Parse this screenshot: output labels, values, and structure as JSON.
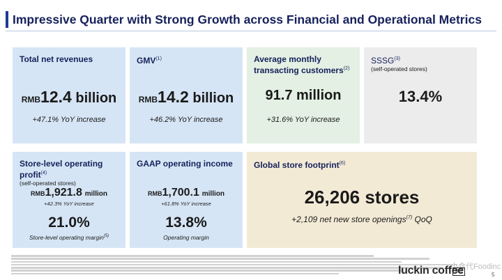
{
  "title": "Impressive Quarter with Strong Growth across Financial and Operational Metrics",
  "colors": {
    "navy": "#16215b",
    "blue_card": "#d6e5f5",
    "green_card": "#e3f0e3",
    "gray_card": "#ececec",
    "beige_card": "#f3ead6"
  },
  "cards": {
    "revenue": {
      "title": "Total net revenues",
      "prefix": "RMB",
      "value": "12.4",
      "unit": "billion",
      "note": "+47.1% YoY increase"
    },
    "gmv": {
      "title": "GMV",
      "sup": "(1)",
      "prefix": "RMB",
      "value": "14.2",
      "unit": "billion",
      "note": "+46.2% YoY increase"
    },
    "customers": {
      "title": "Average monthly transacting customers",
      "sup": "(2)",
      "value": "91.7 million",
      "note": "+31.6% YoY increase"
    },
    "sssg": {
      "title": "SSSG",
      "sup": "(3)",
      "sub": "(self-operated stores)",
      "value": "13.4%"
    },
    "store_profit": {
      "title": "Store-level operating profit",
      "sup": "(4)",
      "sub": "(self-operated stores)",
      "prefix": "RMB",
      "value": "1,921.8",
      "unit": "million",
      "yoy": "+42.3% YoY increase",
      "margin": "21.0%",
      "margin_label": "Store-level operating margin",
      "margin_sup": "(5)"
    },
    "gaap": {
      "title": "GAAP operating income",
      "prefix": "RMB",
      "value": "1,700.1",
      "unit": "million",
      "yoy": "+61.8% YoY increase",
      "margin": "13.8%",
      "margin_label": "Operating margin"
    },
    "footprint": {
      "title": "Global store footprint",
      "sup": "(6)",
      "value": "26,206 stores",
      "note": "+2,109 net new store openings",
      "note_sup": "(7)",
      "note_suffix": " QoQ"
    }
  },
  "logo": {
    "text": "luckin coffee",
    "mark": "瑞幸"
  },
  "watermark": "小食代Foodinc",
  "page_number": "5"
}
